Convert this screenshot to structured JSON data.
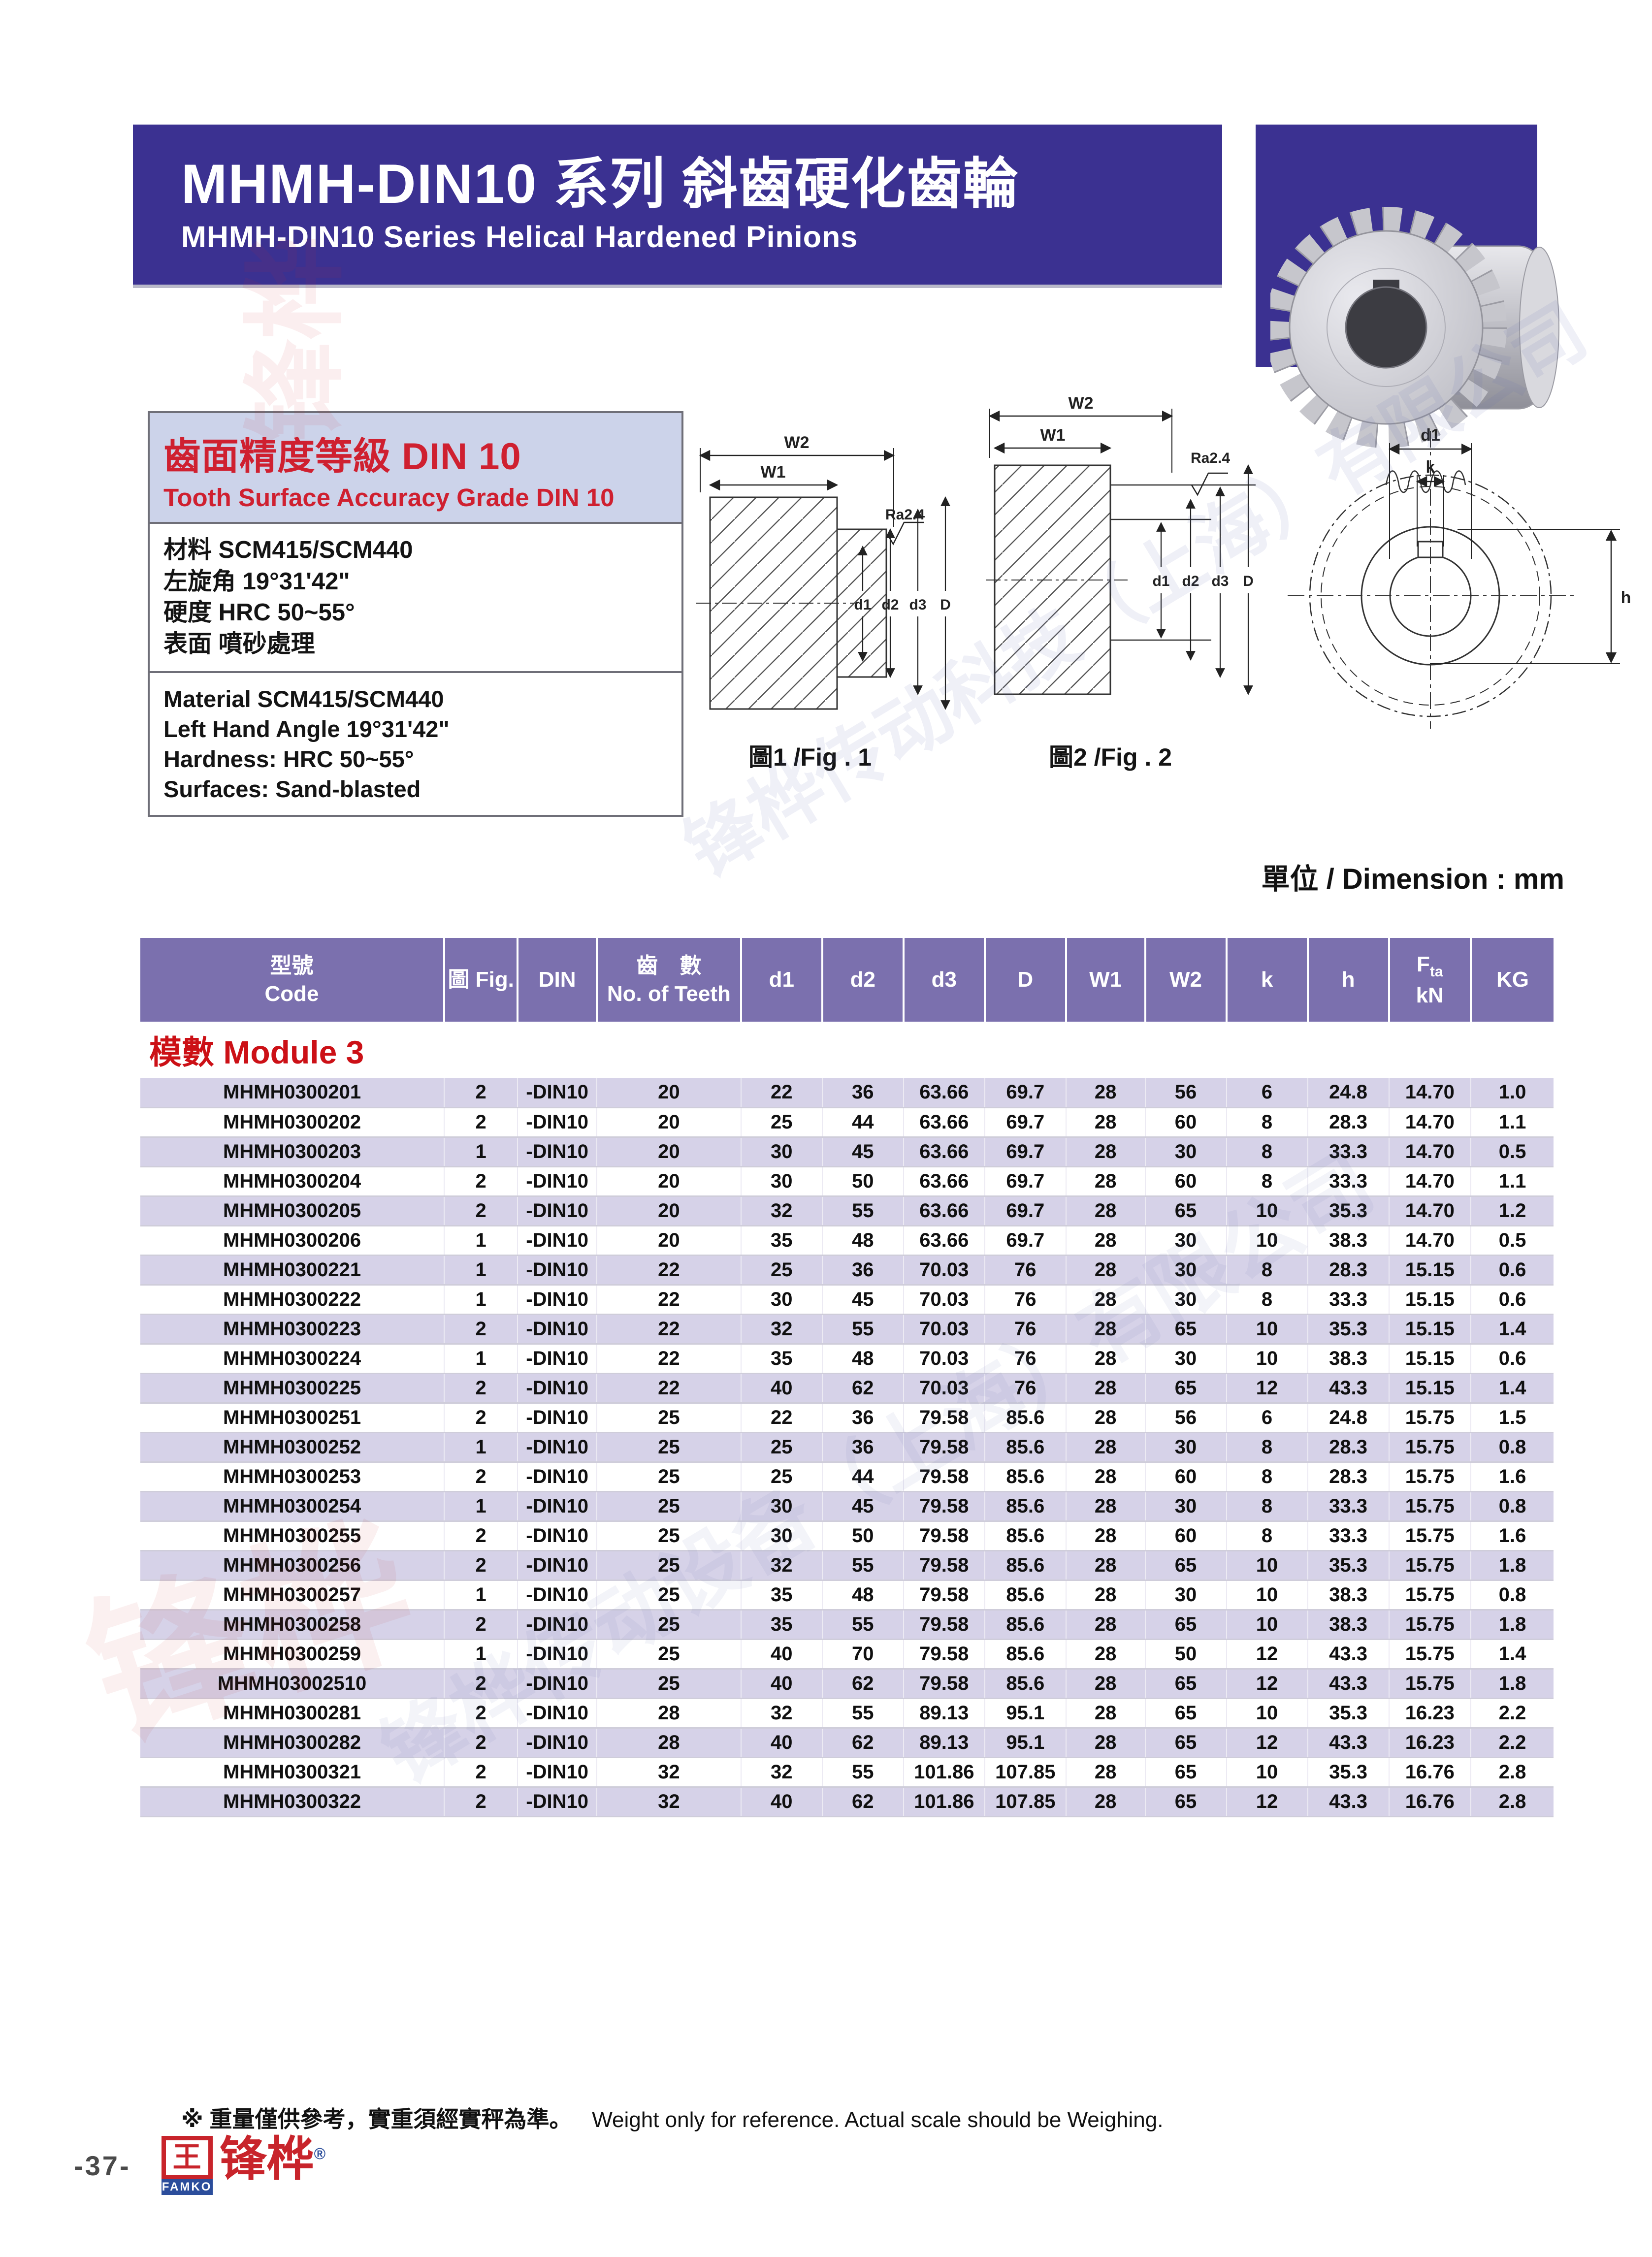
{
  "banner": {
    "title_zh": "MHMH-DIN10 系列 斜齒硬化齒輪",
    "title_en": "MHMH-DIN10 Series Helical Hardened Pinions"
  },
  "info_box": {
    "header_zh": "齒面精度等級 DIN 10",
    "header_en": "Tooth Surface Accuracy Grade DIN 10",
    "specs_zh": [
      "材料 SCM415/SCM440",
      "左旋角 19°31'42\"",
      "硬度 HRC 50~55°",
      "表面 噴砂處理"
    ],
    "specs_en": [
      "Material SCM415/SCM440",
      "Left Hand Angle 19°31'42\"",
      "Hardness: HRC 50~55°",
      "Surfaces: Sand-blasted"
    ]
  },
  "figures": {
    "fig1_caption": "圖1 /Fig . 1",
    "fig2_caption": "圖2 /Fig . 2",
    "labels": {
      "w1": "W1",
      "w2": "W2",
      "ra": "Ra2.4",
      "d1": "d1",
      "d2": "d2",
      "d3": "d3",
      "dD": "D",
      "k": "k",
      "h": "h"
    }
  },
  "unit_label": "單位 / Dimension : mm",
  "table": {
    "headers": [
      {
        "lines": [
          "型號",
          "Code"
        ]
      },
      {
        "lines": [
          "圖 Fig."
        ]
      },
      {
        "lines": [
          "DIN"
        ]
      },
      {
        "lines": [
          "齒　數",
          "No. of Teeth"
        ]
      },
      {
        "lines": [
          "d1"
        ]
      },
      {
        "lines": [
          "d2"
        ]
      },
      {
        "lines": [
          "d3"
        ]
      },
      {
        "lines": [
          "D"
        ]
      },
      {
        "lines": [
          "W1"
        ]
      },
      {
        "lines": [
          "W2"
        ]
      },
      {
        "lines": [
          "k"
        ]
      },
      {
        "lines": [
          "h"
        ]
      },
      {
        "lines": [
          "F_ta",
          "kN"
        ]
      },
      {
        "lines": [
          "KG"
        ]
      }
    ],
    "module_label": "模數 Module 3",
    "rows": [
      [
        "MHMH0300201",
        "2",
        "-DIN10",
        "20",
        "22",
        "36",
        "63.66",
        "69.7",
        "28",
        "56",
        "6",
        "24.8",
        "14.70",
        "1.0"
      ],
      [
        "MHMH0300202",
        "2",
        "-DIN10",
        "20",
        "25",
        "44",
        "63.66",
        "69.7",
        "28",
        "60",
        "8",
        "28.3",
        "14.70",
        "1.1"
      ],
      [
        "MHMH0300203",
        "1",
        "-DIN10",
        "20",
        "30",
        "45",
        "63.66",
        "69.7",
        "28",
        "30",
        "8",
        "33.3",
        "14.70",
        "0.5"
      ],
      [
        "MHMH0300204",
        "2",
        "-DIN10",
        "20",
        "30",
        "50",
        "63.66",
        "69.7",
        "28",
        "60",
        "8",
        "33.3",
        "14.70",
        "1.1"
      ],
      [
        "MHMH0300205",
        "2",
        "-DIN10",
        "20",
        "32",
        "55",
        "63.66",
        "69.7",
        "28",
        "65",
        "10",
        "35.3",
        "14.70",
        "1.2"
      ],
      [
        "MHMH0300206",
        "1",
        "-DIN10",
        "20",
        "35",
        "48",
        "63.66",
        "69.7",
        "28",
        "30",
        "10",
        "38.3",
        "14.70",
        "0.5"
      ],
      [
        "MHMH0300221",
        "1",
        "-DIN10",
        "22",
        "25",
        "36",
        "70.03",
        "76",
        "28",
        "30",
        "8",
        "28.3",
        "15.15",
        "0.6"
      ],
      [
        "MHMH0300222",
        "1",
        "-DIN10",
        "22",
        "30",
        "45",
        "70.03",
        "76",
        "28",
        "30",
        "8",
        "33.3",
        "15.15",
        "0.6"
      ],
      [
        "MHMH0300223",
        "2",
        "-DIN10",
        "22",
        "32",
        "55",
        "70.03",
        "76",
        "28",
        "65",
        "10",
        "35.3",
        "15.15",
        "1.4"
      ],
      [
        "MHMH0300224",
        "1",
        "-DIN10",
        "22",
        "35",
        "48",
        "70.03",
        "76",
        "28",
        "30",
        "10",
        "38.3",
        "15.15",
        "0.6"
      ],
      [
        "MHMH0300225",
        "2",
        "-DIN10",
        "22",
        "40",
        "62",
        "70.03",
        "76",
        "28",
        "65",
        "12",
        "43.3",
        "15.15",
        "1.4"
      ],
      [
        "MHMH0300251",
        "2",
        "-DIN10",
        "25",
        "22",
        "36",
        "79.58",
        "85.6",
        "28",
        "56",
        "6",
        "24.8",
        "15.75",
        "1.5"
      ],
      [
        "MHMH0300252",
        "1",
        "-DIN10",
        "25",
        "25",
        "36",
        "79.58",
        "85.6",
        "28",
        "30",
        "8",
        "28.3",
        "15.75",
        "0.8"
      ],
      [
        "MHMH0300253",
        "2",
        "-DIN10",
        "25",
        "25",
        "44",
        "79.58",
        "85.6",
        "28",
        "60",
        "8",
        "28.3",
        "15.75",
        "1.6"
      ],
      [
        "MHMH0300254",
        "1",
        "-DIN10",
        "25",
        "30",
        "45",
        "79.58",
        "85.6",
        "28",
        "30",
        "8",
        "33.3",
        "15.75",
        "0.8"
      ],
      [
        "MHMH0300255",
        "2",
        "-DIN10",
        "25",
        "30",
        "50",
        "79.58",
        "85.6",
        "28",
        "60",
        "8",
        "33.3",
        "15.75",
        "1.6"
      ],
      [
        "MHMH0300256",
        "2",
        "-DIN10",
        "25",
        "32",
        "55",
        "79.58",
        "85.6",
        "28",
        "65",
        "10",
        "35.3",
        "15.75",
        "1.8"
      ],
      [
        "MHMH0300257",
        "1",
        "-DIN10",
        "25",
        "35",
        "48",
        "79.58",
        "85.6",
        "28",
        "30",
        "10",
        "38.3",
        "15.75",
        "0.8"
      ],
      [
        "MHMH0300258",
        "2",
        "-DIN10",
        "25",
        "35",
        "55",
        "79.58",
        "85.6",
        "28",
        "65",
        "10",
        "38.3",
        "15.75",
        "1.8"
      ],
      [
        "MHMH0300259",
        "1",
        "-DIN10",
        "25",
        "40",
        "70",
        "79.58",
        "85.6",
        "28",
        "50",
        "12",
        "43.3",
        "15.75",
        "1.4"
      ],
      [
        "MHMH03002510",
        "2",
        "-DIN10",
        "25",
        "40",
        "62",
        "79.58",
        "85.6",
        "28",
        "65",
        "12",
        "43.3",
        "15.75",
        "1.8"
      ],
      [
        "MHMH0300281",
        "2",
        "-DIN10",
        "28",
        "32",
        "55",
        "89.13",
        "95.1",
        "28",
        "65",
        "10",
        "35.3",
        "16.23",
        "2.2"
      ],
      [
        "MHMH0300282",
        "2",
        "-DIN10",
        "28",
        "40",
        "62",
        "89.13",
        "95.1",
        "28",
        "65",
        "12",
        "43.3",
        "16.23",
        "2.2"
      ],
      [
        "MHMH0300321",
        "2",
        "-DIN10",
        "32",
        "32",
        "55",
        "101.86",
        "107.85",
        "28",
        "65",
        "10",
        "35.3",
        "16.76",
        "2.8"
      ],
      [
        "MHMH0300322",
        "2",
        "-DIN10",
        "32",
        "40",
        "62",
        "101.86",
        "107.85",
        "28",
        "65",
        "12",
        "43.3",
        "16.76",
        "2.8"
      ]
    ]
  },
  "footnote": {
    "zh": "※ 重量僅供參考，實重須經實秤為準。",
    "en": "Weight only for reference. Actual scale should be Weighing."
  },
  "footer": {
    "page_number": "-37-",
    "brand_zh": "锋桦",
    "brand_mark_glyph": "王",
    "brand_mark_sub": "FAMKO",
    "registered": "®"
  },
  "watermarks": {
    "company1": "锋桦传动科技（上海）有限公司",
    "company2": "锋桦传动设备（上海）有限公司",
    "brand": "锋桦"
  },
  "colors": {
    "banner_purple": "#3b3191",
    "table_header_purple": "#7b70ae",
    "row_stripe_lavender": "#d6d2e8",
    "info_header_bg": "#ccd3ea",
    "accent_red": "#cf2030",
    "logo_red": "#c8242b",
    "logo_blue": "#2b4d9b"
  }
}
